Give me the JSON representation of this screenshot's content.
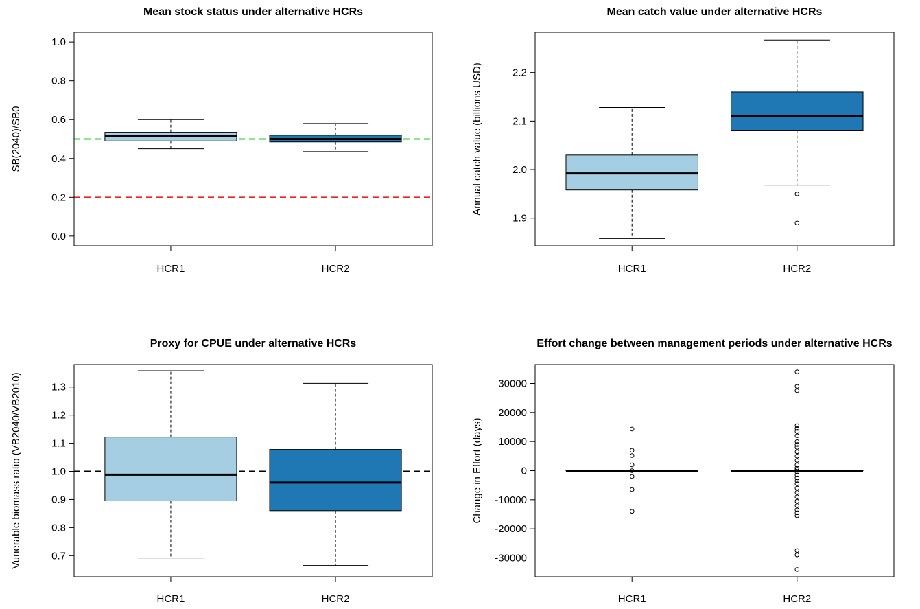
{
  "colors": {
    "hcr1": "#a6cee3",
    "hcr2": "#1f78b4",
    "line": "#000000",
    "green_ref": "#22cc22",
    "red_ref": "#ee2222"
  },
  "chart_data": [
    {
      "type": "box",
      "title": "Mean stock status under alternative HCRs",
      "ylabel": "SB(2040)/SB0",
      "xlabel": "",
      "categories": [
        "HCR1",
        "HCR2"
      ],
      "ylim": [
        -0.05,
        1.05
      ],
      "yticks": [
        "0.0",
        "0.2",
        "0.4",
        "0.6",
        "0.8",
        "1.0"
      ],
      "reference_lines": [
        {
          "y": 0.5,
          "color": "green",
          "style": "dashed"
        },
        {
          "y": 0.2,
          "color": "red",
          "style": "dashed"
        }
      ],
      "boxes": [
        {
          "category": "HCR1",
          "lower_whisker": 0.45,
          "q1": 0.49,
          "median": 0.515,
          "q3": 0.535,
          "upper_whisker": 0.6,
          "outliers": []
        },
        {
          "category": "HCR2",
          "lower_whisker": 0.435,
          "q1": 0.485,
          "median": 0.5,
          "q3": 0.52,
          "upper_whisker": 0.58,
          "outliers": []
        }
      ]
    },
    {
      "type": "box",
      "title": "Mean catch value under alternative HCRs",
      "ylabel": "Annual catch value (billions USD)",
      "xlabel": "",
      "categories": [
        "HCR1",
        "HCR2"
      ],
      "ylim": [
        1.843,
        2.283
      ],
      "yticks": [
        "1.9",
        "2.0",
        "2.1",
        "2.2"
      ],
      "reference_lines": [],
      "boxes": [
        {
          "category": "HCR1",
          "lower_whisker": 1.858,
          "q1": 1.958,
          "median": 1.992,
          "q3": 2.03,
          "upper_whisker": 2.128,
          "outliers": []
        },
        {
          "category": "HCR2",
          "lower_whisker": 1.968,
          "q1": 2.08,
          "median": 2.11,
          "q3": 2.16,
          "upper_whisker": 2.267,
          "outliers": [
            1.95,
            1.89
          ]
        }
      ]
    },
    {
      "type": "box",
      "title": "Proxy for CPUE under alternative HCRs",
      "ylabel": "Vunerable biomass ratio (VB2040/VB2010)",
      "xlabel": "",
      "categories": [
        "HCR1",
        "HCR2"
      ],
      "ylim": [
        0.625,
        1.38
      ],
      "yticks": [
        "0.7",
        "0.8",
        "0.9",
        "1.0",
        "1.1",
        "1.2",
        "1.3"
      ],
      "reference_lines": [
        {
          "y": 1.0,
          "color": "black",
          "style": "dashed"
        }
      ],
      "boxes": [
        {
          "category": "HCR1",
          "lower_whisker": 0.692,
          "q1": 0.895,
          "median": 0.988,
          "q3": 1.122,
          "upper_whisker": 1.358,
          "outliers": []
        },
        {
          "category": "HCR2",
          "lower_whisker": 0.665,
          "q1": 0.86,
          "median": 0.96,
          "q3": 1.078,
          "upper_whisker": 1.313,
          "outliers": []
        }
      ]
    },
    {
      "type": "box",
      "title": "Effort change between management periods under alternative HCRs",
      "ylabel": "Change in Effort (days)",
      "xlabel": "",
      "categories": [
        "HCR1",
        "HCR2"
      ],
      "ylim": [
        -36500,
        36500
      ],
      "yticks": [
        "-30000",
        "-20000",
        "-10000",
        "0",
        "10000",
        "20000",
        "30000"
      ],
      "reference_lines": [],
      "boxes": [
        {
          "category": "HCR1",
          "lower_whisker": 0,
          "q1": 0,
          "median": 0,
          "q3": 0,
          "upper_whisker": 0,
          "outliers": [
            14300,
            7000,
            5200,
            2000,
            0,
            -2000,
            -6500,
            -14000
          ]
        },
        {
          "category": "HCR2",
          "lower_whisker": 0,
          "q1": 0,
          "median": 0,
          "q3": 0,
          "upper_whisker": 0,
          "outliers": [
            34000,
            29000,
            27500,
            15500,
            14500,
            13500,
            12000,
            10000,
            9000,
            8000,
            6500,
            5000,
            3500,
            2000,
            1000,
            500,
            -500,
            -1500,
            -2500,
            -3500,
            -4500,
            -6000,
            -7500,
            -9000,
            -10500,
            -12000,
            -13500,
            -14500,
            -15500,
            -27500,
            -29000,
            -34000
          ]
        }
      ]
    }
  ]
}
